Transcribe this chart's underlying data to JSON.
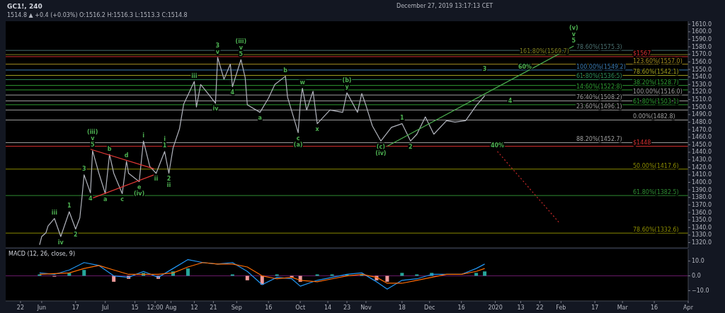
{
  "chart_data": [
    {
      "type": "line",
      "title": "GC1!, 240",
      "subtitle": "1514.8 ▲ +0.4 (+0.03%) O:1516.2 H:1516.3 L:1513.3 C:1514.8",
      "xlim": [
        "2019-05-15",
        "2020-04-01"
      ],
      "ylim": [
        1313,
        1614
      ],
      "tick_labels": "y",
      "yticks": [
        {
          "value": 1320,
          "label": "1320.0"
        },
        {
          "value": 1330,
          "label": "1330.0"
        },
        {
          "value": 1340,
          "label": "1340.0"
        },
        {
          "value": 1350,
          "label": "1350.0"
        },
        {
          "value": 1360,
          "label": "1360.0"
        },
        {
          "value": 1370,
          "label": "1370.0"
        },
        {
          "value": 1380,
          "label": "1380.0"
        },
        {
          "value": 1390,
          "label": "1390.0"
        },
        {
          "value": 1400,
          "label": "1400.0"
        },
        {
          "value": 1410,
          "label": "1410.0"
        },
        {
          "value": 1420,
          "label": "1420.0"
        },
        {
          "value": 1430,
          "label": "1430.0"
        },
        {
          "value": 1440,
          "label": "1440.0"
        },
        {
          "value": 1450,
          "label": "1450.0"
        },
        {
          "value": 1460,
          "label": "1460.0"
        },
        {
          "value": 1470,
          "label": "1470.0"
        },
        {
          "value": 1480,
          "label": "1480.0"
        },
        {
          "value": 1490,
          "label": "1490.0"
        },
        {
          "value": 1500,
          "label": "1500.0"
        },
        {
          "value": 1510,
          "label": "1510.0"
        },
        {
          "value": 1520,
          "label": "1520.0"
        },
        {
          "value": 1530,
          "label": "1530.0"
        },
        {
          "value": 1540,
          "label": "1540.0"
        },
        {
          "value": 1550,
          "label": "1550.0"
        },
        {
          "value": 1560,
          "label": "1560.0"
        },
        {
          "value": 1570,
          "label": "1570.0"
        },
        {
          "value": 1580,
          "label": "1580.0"
        },
        {
          "value": 1590,
          "label": "1590.0"
        },
        {
          "value": 1600,
          "label": "1600.0"
        },
        {
          "value": 1610,
          "label": "1610.0"
        }
      ],
      "x": [
        "2019-05-31",
        "2019-06-01",
        "2019-06-03",
        "2019-06-04",
        "2019-06-07",
        "2019-06-10",
        "2019-06-14",
        "2019-06-17",
        "2019-06-19",
        "2019-06-20",
        "2019-06-21",
        "2019-06-24",
        "2019-06-25",
        "2019-06-28",
        "2019-07-01",
        "2019-07-03",
        "2019-07-05",
        "2019-07-09",
        "2019-07-11",
        "2019-07-12",
        "2019-07-17",
        "2019-07-19",
        "2019-07-22",
        "2019-07-25",
        "2019-07-29",
        "2019-07-31",
        "2019-08-02",
        "2019-08-05",
        "2019-08-07",
        "2019-08-12",
        "2019-08-13",
        "2019-08-15",
        "2019-08-19",
        "2019-08-22",
        "2019-08-23",
        "2019-08-26",
        "2019-08-29",
        "2019-08-30",
        "2019-09-03",
        "2019-09-05",
        "2019-09-06",
        "2019-09-12",
        "2019-09-16",
        "2019-09-19",
        "2019-09-24",
        "2019-09-25",
        "2019-09-30",
        "2019-10-01",
        "2019-10-02",
        "2019-10-04",
        "2019-10-07",
        "2019-10-09",
        "2019-10-15",
        "2019-10-21",
        "2019-10-23",
        "2019-10-28",
        "2019-10-30",
        "2019-11-01",
        "2019-11-04",
        "2019-11-08",
        "2019-11-13",
        "2019-11-18",
        "2019-11-22",
        "2019-11-25",
        "2019-11-29",
        "2019-12-03",
        "2019-12-09",
        "2019-12-13",
        "2019-12-18",
        "2019-12-23",
        "2019-12-27"
      ],
      "series": [
        {
          "color": "#b2b5be",
          "values": [
            1317,
            1328,
            1333,
            1342,
            1352,
            1328,
            1361,
            1338,
            1353,
            1380,
            1410,
            1386,
            1442,
            1412,
            1385,
            1437,
            1412,
            1385,
            1428,
            1412,
            1401,
            1455,
            1421,
            1412,
            1441,
            1412,
            1446,
            1471,
            1504,
            1534,
            1500,
            1530,
            1516,
            1505,
            1566,
            1537,
            1557,
            1527,
            1563,
            1539,
            1503,
            1493,
            1512,
            1530,
            1541,
            1513,
            1466,
            1505,
            1525,
            1496,
            1521,
            1478,
            1496,
            1493,
            1519,
            1493,
            1518,
            1502,
            1475,
            1455,
            1473,
            1478,
            1455,
            1464,
            1487,
            1464,
            1482,
            1480,
            1482,
            1502,
            1515
          ]
        },
        {
          "color": "#4caf50",
          "x": [
            "2019-11-11",
            "2020-02-07"
          ],
          "values": [
            1448,
            1581
          ]
        },
        {
          "color": "#c62828",
          "line_style": "dotted",
          "x": [
            "2020-01-02",
            "2020-01-31"
          ],
          "values": [
            1441,
            1347
          ]
        },
        {
          "color": "#e53935",
          "x": [
            "2019-06-24",
            "2019-07-24"
          ],
          "values": [
            1444,
            1418
          ]
        },
        {
          "color": "#e53935",
          "x": [
            "2019-06-24",
            "2019-07-24"
          ],
          "values": [
            1378,
            1410
          ]
        }
      ],
      "ref_lines": [
        {
          "axis": "y",
          "value": 1567,
          "label": "$1567",
          "color": "#d32f2f"
        },
        {
          "axis": "y",
          "value": 1448,
          "label": "$1448",
          "color": "#d32f2f"
        },
        {
          "axis": "y",
          "value": 1575.3,
          "label": "78.60%(1575.3)",
          "color": "#4a7070"
        },
        {
          "axis": "y",
          "value": 1569.7,
          "label": "161.80%(1569.7)",
          "color": "#808020"
        },
        {
          "axis": "y",
          "value": 1557.0,
          "label": "123.60%(1557.0)",
          "color": "#a08a20"
        },
        {
          "axis": "y",
          "value": 1549.2,
          "label": "100.00%(1549.2)",
          "color": "#3a7ab0"
        },
        {
          "axis": "y",
          "value": 1542.1,
          "label": "78.60%(1542.1)",
          "color": "#a0a020"
        },
        {
          "axis": "y",
          "value": 1536.5,
          "label": "61.80%(1536.5)",
          "color": "#2e8b57"
        },
        {
          "axis": "y",
          "value": 1528.7,
          "label": "38.20%(1528.7)",
          "color": "#2e9d32"
        },
        {
          "axis": "y",
          "value": 1522.8,
          "label": "14.60%(1522.8)",
          "color": "#2e9d32"
        },
        {
          "axis": "y",
          "value": 1516.0,
          "label": "100.00%(1516.0)",
          "color": "#9e9e9e"
        },
        {
          "axis": "y",
          "value": 1508.2,
          "label": "76.40%(1508.2)",
          "color": "#9e9e9e"
        },
        {
          "axis": "y",
          "value": 1503.1,
          "label": "61.80%(1503.1)",
          "color": "#2e9d32"
        },
        {
          "axis": "y",
          "value": 1496.1,
          "label": "23.60%(1496.1)",
          "color": "#9e9e9e"
        },
        {
          "axis": "y",
          "value": 1482.8,
          "label": "0.00%(1482.8)",
          "color": "#9e9e9e"
        },
        {
          "axis": "y",
          "value": 1452.7,
          "label": "88.20%(1452.7)",
          "color": "#9e9e9e"
        },
        {
          "axis": "y",
          "value": 1417.6,
          "label": "50.00%(1417.6)",
          "color": "#8b8b00"
        },
        {
          "axis": "y",
          "value": 1382.5,
          "label": "61.80%(1382.5)",
          "color": "#2e8b32"
        },
        {
          "axis": "y",
          "value": 1332.6,
          "label": "78.60%(1332.6)",
          "color": "#8b8b00"
        }
      ],
      "annotations": [
        "December 27, 2019 13:17:13 CET",
        {
          "text": "iii",
          "x": "2019-06-07",
          "y": 1352
        },
        {
          "text": "iv",
          "x": "2019-06-10",
          "y": 1328
        },
        {
          "text": "1",
          "x": "2019-06-14",
          "y": 1361
        },
        {
          "text": "2",
          "x": "2019-06-17",
          "y": 1338
        },
        {
          "text": "3",
          "x": "2019-06-21",
          "y": 1410
        },
        {
          "text": "4",
          "x": "2019-06-24",
          "y": 1386
        },
        {
          "text": "5",
          "x": "2019-06-25",
          "y": 1442
        },
        {
          "text": "v",
          "x": "2019-06-25",
          "y": 1442
        },
        {
          "text": "(iii)",
          "x": "2019-06-25",
          "y": 1442
        },
        {
          "text": "a",
          "x": "2019-07-01",
          "y": 1385
        },
        {
          "text": "b",
          "x": "2019-07-03",
          "y": 1437
        },
        {
          "text": "c",
          "x": "2019-07-09",
          "y": 1385
        },
        {
          "text": "d",
          "x": "2019-07-11",
          "y": 1428
        },
        {
          "text": "e",
          "x": "2019-07-17",
          "y": 1401
        },
        {
          "text": "(iv)",
          "x": "2019-07-17",
          "y": 1401
        },
        {
          "text": "i",
          "x": "2019-07-19",
          "y": 1455
        },
        {
          "text": "ii",
          "x": "2019-07-25",
          "y": 1412
        },
        {
          "text": "1",
          "x": "2019-07-29",
          "y": 1441
        },
        {
          "text": "2",
          "x": "2019-07-31",
          "y": 1412
        },
        {
          "text": "i",
          "x": "2019-07-29",
          "y": 1441
        },
        {
          "text": "ii",
          "x": "2019-07-31",
          "y": 1412
        },
        {
          "text": "iii",
          "x": "2019-08-12",
          "y": 1534
        },
        {
          "text": "iv",
          "x": "2019-08-22",
          "y": 1505
        },
        {
          "text": "v",
          "x": "2019-08-23",
          "y": 1566
        },
        {
          "text": "3",
          "x": "2019-08-23",
          "y": 1566
        },
        {
          "text": "4",
          "x": "2019-08-30",
          "y": 1527
        },
        {
          "text": "5",
          "x": "2019-09-03",
          "y": 1563
        },
        {
          "text": "v",
          "x": "2019-09-03",
          "y": 1563
        },
        {
          "text": "(iii)",
          "x": "2019-09-03",
          "y": 1563
        },
        {
          "text": "a",
          "x": "2019-09-12",
          "y": 1493
        },
        {
          "text": "b",
          "x": "2019-09-24",
          "y": 1541
        },
        {
          "text": "c",
          "x": "2019-09-30",
          "y": 1466
        },
        {
          "text": "(a)",
          "x": "2019-09-30",
          "y": 1466
        },
        {
          "text": "w",
          "x": "2019-10-02",
          "y": 1525
        },
        {
          "text": "x",
          "x": "2019-10-09",
          "y": 1478
        },
        {
          "text": "y",
          "x": "2019-10-23",
          "y": 1519
        },
        {
          "text": "(b)",
          "x": "2019-10-23",
          "y": 1519
        },
        {
          "text": "(c)",
          "x": "2019-11-08",
          "y": 1455
        },
        {
          "text": "(iv)",
          "x": "2019-11-08",
          "y": 1455
        },
        {
          "text": "1",
          "x": "2019-11-18",
          "y": 1478
        },
        {
          "text": "2",
          "x": "2019-11-22",
          "y": 1455
        },
        {
          "text": "3",
          "x": "2019-12-27",
          "y": 1543
        },
        {
          "text": "4",
          "x": "2020-01-08",
          "y": 1501
        },
        {
          "text": "5",
          "x": "2020-02-07",
          "y": 1581
        },
        {
          "text": "v",
          "x": "2020-02-07",
          "y": 1581
        },
        {
          "text": "(v)",
          "x": "2020-02-07",
          "y": 1581
        },
        {
          "text": "60%",
          "x": "2020-01-15",
          "y": 1546
        },
        {
          "text": "40%",
          "x": "2020-01-02",
          "y": 1441
        }
      ]
    },
    {
      "type": "line",
      "title": "MACD (12, 26, close, 9)",
      "xlim": [
        "2019-05-15",
        "2020-04-01"
      ],
      "ylim": [
        -17,
        18
      ],
      "xticks": [
        {
          "value": "2019-05-22",
          "label": "22"
        },
        {
          "value": "2019-06-01",
          "label": "Jun"
        },
        {
          "value": "2019-06-17",
          "label": "17"
        },
        {
          "value": "2019-07-01",
          "label": "Jul"
        },
        {
          "value": "2019-07-15",
          "label": "15"
        },
        {
          "value": "2019-07-24T12:00",
          "label": "12:00"
        },
        {
          "value": "2019-08-01",
          "label": "Aug"
        },
        {
          "value": "2019-08-12",
          "label": "12"
        },
        {
          "value": "2019-08-21",
          "label": "21"
        },
        {
          "value": "2019-09-01",
          "label": "Sep"
        },
        {
          "value": "2019-09-16",
          "label": "16"
        },
        {
          "value": "2019-10-01",
          "label": "Oct"
        },
        {
          "value": "2019-10-14",
          "label": "14"
        },
        {
          "value": "2019-10-23",
          "label": "23"
        },
        {
          "value": "2019-11-01",
          "label": "Nov"
        },
        {
          "value": "2019-11-18",
          "label": "18"
        },
        {
          "value": "2019-12-01",
          "label": "Dec"
        },
        {
          "value": "2019-12-16",
          "label": "16"
        },
        {
          "value": "2020-01-01",
          "label": "2020"
        },
        {
          "value": "2020-01-13",
          "label": "13"
        },
        {
          "value": "2020-01-22",
          "label": "22"
        },
        {
          "value": "2020-02-01",
          "label": "Feb"
        },
        {
          "value": "2020-02-17",
          "label": "17"
        },
        {
          "value": "2020-03-01",
          "label": "Mar"
        },
        {
          "value": "2020-03-16",
          "label": "16"
        },
        {
          "value": "2020-04-01",
          "label": "Apr"
        }
      ],
      "yticks": [
        {
          "value": 10,
          "label": "10.0"
        },
        {
          "value": 0,
          "label": "0.0"
        },
        {
          "value": -10,
          "label": "−10.0"
        }
      ],
      "ref_lines": [
        {
          "axis": "y",
          "value": 0,
          "color": "#6a1b6a"
        }
      ],
      "x": [
        "2019-05-31",
        "2019-06-07",
        "2019-06-14",
        "2019-06-21",
        "2019-06-28",
        "2019-07-05",
        "2019-07-12",
        "2019-07-19",
        "2019-07-26",
        "2019-08-02",
        "2019-08-09",
        "2019-08-16",
        "2019-08-23",
        "2019-08-30",
        "2019-09-06",
        "2019-09-13",
        "2019-09-20",
        "2019-09-27",
        "2019-10-01",
        "2019-10-09",
        "2019-10-16",
        "2019-10-23",
        "2019-10-30",
        "2019-11-06",
        "2019-11-11",
        "2019-11-18",
        "2019-11-25",
        "2019-12-02",
        "2019-12-09",
        "2019-12-16",
        "2019-12-23",
        "2019-12-27"
      ],
      "series": [
        {
          "type": "bar",
          "values": [
            1,
            -0.5,
            2,
            4,
            0,
            -4,
            -2,
            2,
            -2,
            3,
            5,
            0,
            0,
            1,
            -3,
            -6,
            1,
            -1,
            -4,
            1,
            1,
            1,
            1,
            -3,
            -4,
            2,
            1,
            2,
            0,
            0,
            2,
            3
          ],
          "colors": [
            "#26a69a",
            "#ef9a9a",
            "#26a69a",
            "#26a69a",
            "#26a69a",
            "#ef9a9a",
            "#ef9a9a",
            "#26a69a",
            "#ef9a9a",
            "#26a69a",
            "#26a69a",
            "#26a69a",
            "#26a69a",
            "#26a69a",
            "#ef9a9a",
            "#ef9a9a",
            "#26a69a",
            "#ef9a9a",
            "#ef9a9a",
            "#26a69a",
            "#26a69a",
            "#26a69a",
            "#26a69a",
            "#ef9a9a",
            "#ef9a9a",
            "#26a69a",
            "#26a69a",
            "#26a69a",
            "#26a69a",
            "#26a69a",
            "#26a69a",
            "#26a69a"
          ]
        },
        {
          "color": "#2196f3",
          "values": [
            2,
            1,
            4,
            9,
            7,
            0,
            -1,
            3,
            -1,
            5,
            11,
            9,
            8,
            9,
            3,
            -6,
            -1,
            -2,
            -7,
            -3,
            -1,
            1,
            2,
            -4,
            -9,
            -3,
            -2,
            1,
            1,
            1,
            5,
            8
          ]
        },
        {
          "color": "#ff6d00",
          "values": [
            1,
            1.5,
            2,
            5,
            7,
            4,
            1,
            1,
            1,
            2,
            6,
            9,
            8,
            8,
            6,
            0,
            -2,
            -1,
            -3,
            -4,
            -2,
            0,
            1,
            -1,
            -5,
            -5,
            -3,
            -1,
            1,
            1,
            3,
            5
          ]
        }
      ]
    }
  ]
}
